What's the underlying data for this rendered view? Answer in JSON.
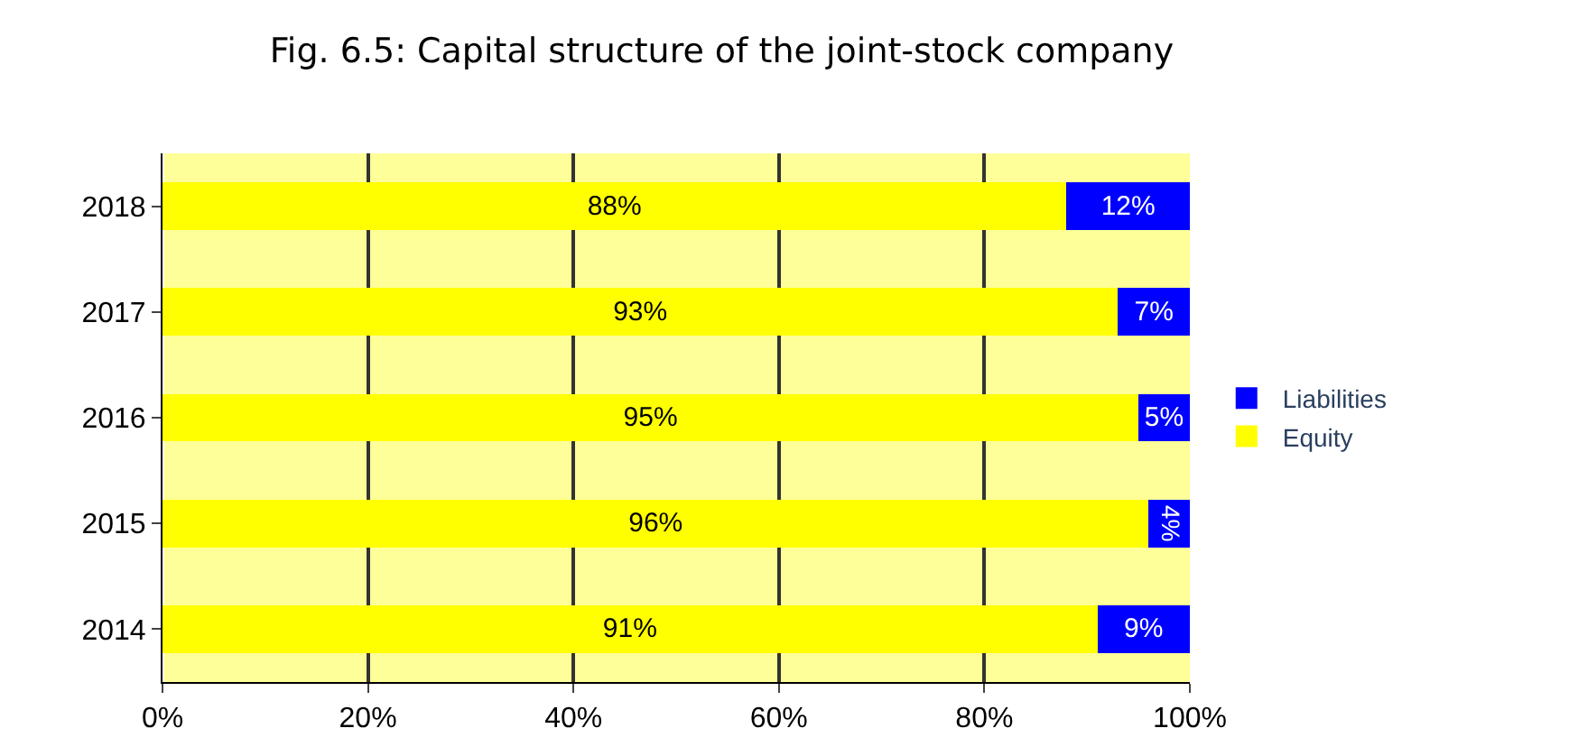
{
  "chart_data": {
    "type": "bar",
    "orientation": "horizontal",
    "stacked": true,
    "title": "Fig. 6.5: Capital structure of the joint-stock company",
    "categories": [
      "2018",
      "2017",
      "2016",
      "2015",
      "2014"
    ],
    "series": [
      {
        "name": "Equity",
        "color": "#ffff00",
        "values": [
          88,
          93,
          95,
          96,
          91
        ],
        "value_labels": [
          "88%",
          "93%",
          "95%",
          "96%",
          "91%"
        ]
      },
      {
        "name": "Liabilities",
        "color": "#0000ff",
        "values": [
          12,
          7,
          5,
          4,
          9
        ],
        "value_labels": [
          "12%",
          "7%",
          "5%",
          "4%",
          "9%"
        ]
      }
    ],
    "xlim": [
      0,
      100
    ],
    "xticks": [
      {
        "value": 0,
        "label": "0%"
      },
      {
        "value": 20,
        "label": "20%"
      },
      {
        "value": 40,
        "label": "40%"
      },
      {
        "value": 60,
        "label": "60%"
      },
      {
        "value": 80,
        "label": "80%"
      },
      {
        "value": 100,
        "label": "100%"
      }
    ],
    "grid": "x",
    "legend": "right"
  }
}
